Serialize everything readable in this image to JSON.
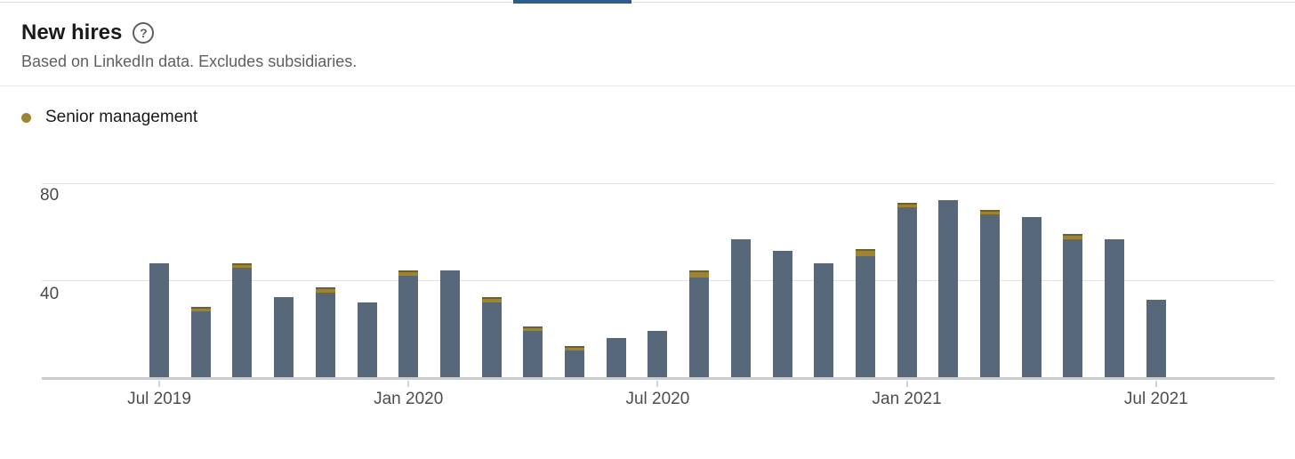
{
  "header": {
    "title": "New hires",
    "help_icon_glyph": "?",
    "subtitle": "Based on LinkedIn data. Excludes subsidiaries."
  },
  "legend": {
    "items": [
      {
        "label": "Senior management",
        "color": "#9d8435"
      }
    ]
  },
  "colors": {
    "bar": "#56687a",
    "senior_management": "#9d8435",
    "active_tab_indicator": "#2f5d8c"
  },
  "chart_data": {
    "type": "bar",
    "stacked": true,
    "title": "New hires",
    "categories": [
      "Jul 2019",
      "Aug 2019",
      "Sep 2019",
      "Oct 2019",
      "Nov 2019",
      "Dec 2019",
      "Jan 2020",
      "Feb 2020",
      "Mar 2020",
      "Apr 2020",
      "May 2020",
      "Jun 2020",
      "Jul 2020",
      "Aug 2020",
      "Sep 2020",
      "Oct 2020",
      "Nov 2020",
      "Dec 2020",
      "Jan 2021",
      "Feb 2021",
      "Mar 2021",
      "Apr 2021",
      "May 2021",
      "Jun 2021",
      "Jul 2021"
    ],
    "totals": [
      47,
      29,
      47,
      33,
      37,
      31,
      44,
      44,
      33,
      21,
      13,
      16,
      19,
      44,
      57,
      52,
      47,
      53,
      72,
      73,
      69,
      66,
      59,
      57,
      32
    ],
    "senior_management": [
      0,
      2,
      2,
      0,
      2,
      0,
      2,
      0,
      2,
      2,
      2,
      0,
      0,
      3,
      0,
      0,
      0,
      3,
      2,
      0,
      2,
      0,
      2,
      0,
      0
    ],
    "x_axis_tick_labels": [
      "Jul 2019",
      "Jan 2020",
      "Jul 2020",
      "Jan 2021",
      "Jul 2021"
    ],
    "y_axis_ticks": [
      40,
      80
    ],
    "ylim": [
      0,
      80
    ],
    "grid": "horizontal",
    "legend_position": "top-left"
  }
}
